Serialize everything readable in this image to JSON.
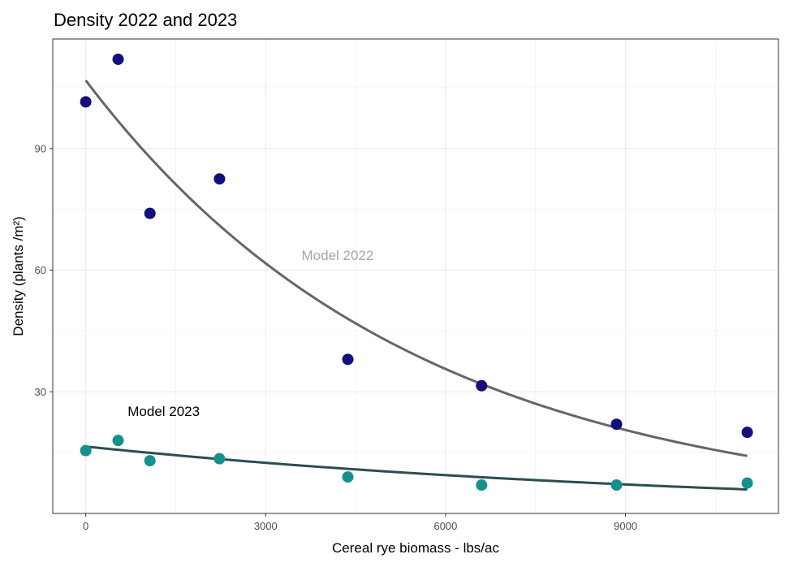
{
  "chart_data": {
    "type": "scatter",
    "title": "Density 2022 and 2023",
    "xlabel": "Cereal rye biomass - lbs/ac",
    "ylabel": "Density (plants /m²)",
    "xlim": [
      -550,
      11550
    ],
    "ylim": [
      0,
      117
    ],
    "x_ticks": [
      0,
      3000,
      6000,
      9000
    ],
    "x_tick_labels": [
      "0",
      "3000",
      "6000",
      "9000"
    ],
    "y_ticks": [
      30,
      60,
      90
    ],
    "y_tick_labels": [
      "30",
      "60",
      "90"
    ],
    "grid": true,
    "series": [
      {
        "year": "2022",
        "color": "#140f80",
        "points": [
          {
            "x": 0,
            "y": 101.5
          },
          {
            "x": 540,
            "y": 112
          },
          {
            "x": 1070,
            "y": 74
          },
          {
            "x": 2230,
            "y": 82.5
          },
          {
            "x": 4370,
            "y": 38
          },
          {
            "x": 6600,
            "y": 31.5
          },
          {
            "x": 8850,
            "y": 22
          },
          {
            "x": 11030,
            "y": 20
          }
        ],
        "model": {
          "label": "Model 2022",
          "label_color": "#a6a6a6",
          "line_color": "#666666",
          "form": "exponential",
          "a": 106.8,
          "b": 0.000183,
          "x_range": [
            0,
            11030
          ]
        }
      },
      {
        "year": "2023",
        "color": "#14918f",
        "points": [
          {
            "x": 0,
            "y": 15.5
          },
          {
            "x": 540,
            "y": 18
          },
          {
            "x": 1070,
            "y": 13
          },
          {
            "x": 2230,
            "y": 13.5
          },
          {
            "x": 4370,
            "y": 9
          },
          {
            "x": 6600,
            "y": 7
          },
          {
            "x": 8850,
            "y": 7
          },
          {
            "x": 11030,
            "y": 7.5
          }
        ],
        "model": {
          "label": "Model 2023",
          "label_color": "#000000",
          "line_color": "#2b4e52",
          "form": "exponential",
          "a": 16.5,
          "b": 9.29e-05,
          "x_range": [
            0,
            11030
          ]
        }
      }
    ],
    "annotations": [
      {
        "text": "Model 2022",
        "x": 4200,
        "y": 62.5,
        "color": "#a6a6a6"
      },
      {
        "text": "Model 2023",
        "x": 1300,
        "y": 24,
        "color": "#000000"
      }
    ]
  }
}
